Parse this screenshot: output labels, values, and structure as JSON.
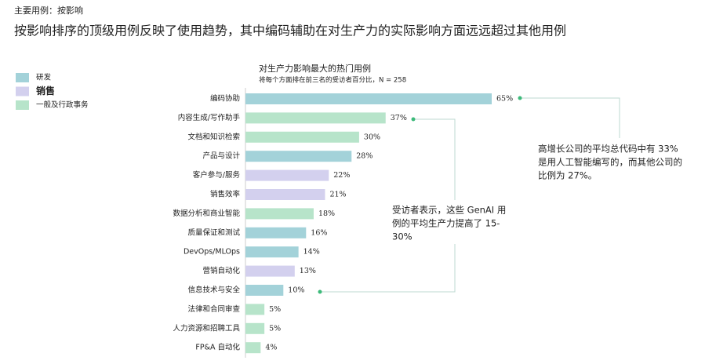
{
  "header": {
    "kicker": "主要用例：按影响",
    "title": "按影响排序的顶级用例反映了使用趋势，其中编码辅助在对生产力的实际影响方面远远超过其他用例"
  },
  "chart_data": {
    "type": "bar",
    "orientation": "horizontal",
    "title": "对生产力影响最大的热门用例",
    "subtitle": "将每个方面排在前三名的受访者百分比，N = 258",
    "categories": [
      "编码协助",
      "内容生成/写作助手",
      "文档和知识检索",
      "产品与设计",
      "客户参与/服务",
      "销售效率",
      "数据分析和商业智能",
      "质量保证和测试",
      "DevOps/MLOps",
      "营销自动化",
      "信息技术与安全",
      "法律和合同审查",
      "人力资源和招聘工具",
      "FP&A 自动化"
    ],
    "series": [
      {
        "name": "研发",
        "color": "#a3d2d9",
        "values": [
          65,
          null,
          null,
          28,
          null,
          null,
          null,
          16,
          14,
          null,
          10,
          null,
          null,
          null
        ],
        "value_labels": [
          "65%",
          null,
          null,
          "28%",
          null,
          null,
          null,
          "16%",
          "14%",
          null,
          "10%",
          null,
          null,
          null
        ]
      },
      {
        "name": "销售",
        "color": "#d3d0ee",
        "values": [
          null,
          null,
          null,
          null,
          22,
          21,
          null,
          null,
          null,
          13,
          null,
          null,
          null,
          null
        ],
        "value_labels": [
          null,
          null,
          null,
          null,
          "22%",
          "21%",
          null,
          null,
          null,
          "13%",
          null,
          null,
          null,
          null
        ]
      },
      {
        "name": "一般及行政事务",
        "color": "#b7e4ca",
        "values": [
          null,
          37,
          30,
          null,
          null,
          null,
          18,
          null,
          null,
          null,
          null,
          5,
          5,
          4
        ],
        "value_labels": [
          null,
          "37%",
          "30%",
          null,
          null,
          null,
          "18%",
          null,
          null,
          null,
          null,
          "5%",
          "5%",
          "4%"
        ]
      }
    ],
    "annotations": [
      {
        "lines": [
          "高增长公司的平均总代码中有 33%",
          "是用人工智能编写的，而其他公司的",
          "比例为 27%。"
        ]
      },
      {
        "lines": [
          "受访者表示，这些 GenAI 用",
          "例的平均生产力提高了 15-",
          "30%"
        ]
      }
    ]
  }
}
